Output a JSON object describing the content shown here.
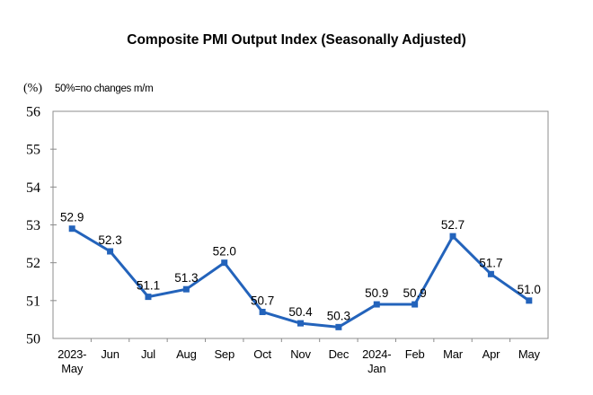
{
  "header": {
    "title": "Composite PMI Output Index (Seasonally Adjusted)"
  },
  "axis_note": {
    "unit": "(%)",
    "note": "50%=no changes m/m"
  },
  "chart_data": {
    "type": "line",
    "title": "Composite PMI Output Index (Seasonally Adjusted)",
    "xlabel": "",
    "ylabel": "(%)",
    "categories": [
      [
        "2023-",
        "May"
      ],
      [
        "Jun"
      ],
      [
        "Jul"
      ],
      [
        "Aug"
      ],
      [
        "Sep"
      ],
      [
        "Oct"
      ],
      [
        "Nov"
      ],
      [
        "Dec"
      ],
      [
        "2024-",
        "Jan"
      ],
      [
        "Feb"
      ],
      [
        "Mar"
      ],
      [
        "Apr"
      ],
      [
        "May"
      ]
    ],
    "series": [
      {
        "name": "Composite PMI Output Index",
        "values": [
          52.9,
          52.3,
          51.1,
          51.3,
          52.0,
          50.7,
          50.4,
          50.3,
          50.9,
          50.9,
          52.7,
          51.7,
          51.0
        ]
      }
    ],
    "ylim": [
      50,
      56
    ],
    "ytick_step": 1,
    "grid": "off",
    "legend": "none",
    "data_labels": "on",
    "colors": {
      "line": "#2363BB",
      "marker": "#2363BB",
      "frame": "#8C8C8C",
      "tick": "#8C8C8C",
      "text": "#000000"
    }
  }
}
